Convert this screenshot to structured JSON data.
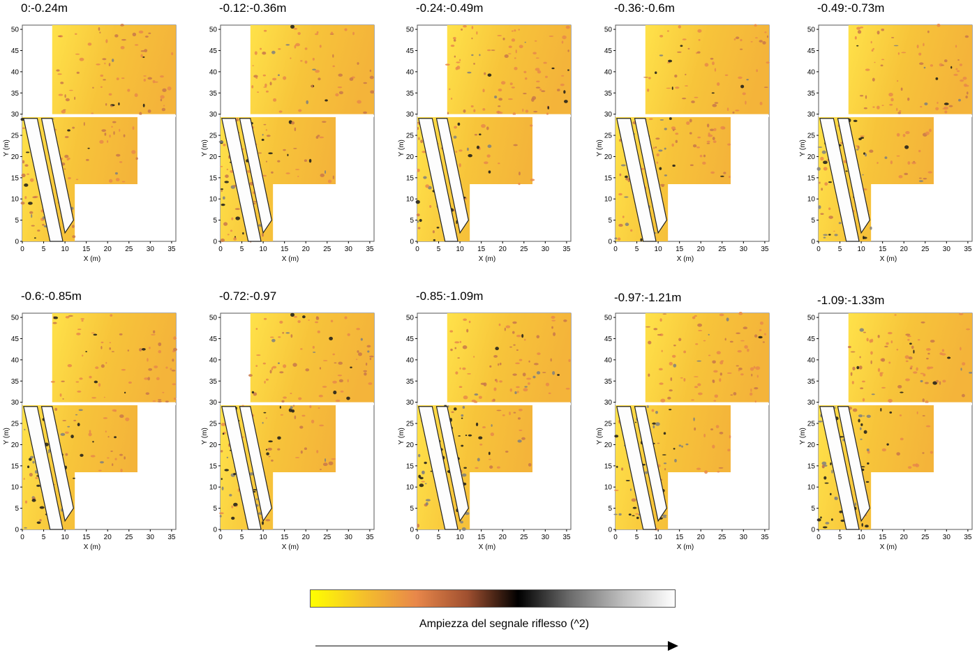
{
  "panels": [
    {
      "title": "0:-0.24m"
    },
    {
      "title": "-0.12:-0.36m"
    },
    {
      "title": "-0.24:-0.49m"
    },
    {
      "title": "-0.36:-0.6m"
    },
    {
      "title": "-0.49:-0.73m"
    },
    {
      "title": "-0.6:-0.85m"
    },
    {
      "title": "-0.72:-0.97"
    },
    {
      "title": "-0.85:-1.09m"
    },
    {
      "title": "-0.97:-1.21m"
    },
    {
      "title": "-1.09:-1.33m"
    }
  ],
  "axes": {
    "xlabel": "X (m)",
    "ylabel": "Y (m)",
    "xticks": [
      "0",
      "5",
      "10",
      "15",
      "20",
      "25",
      "30",
      "35"
    ],
    "yticks": [
      "0",
      "5",
      "10",
      "15",
      "20",
      "25",
      "30",
      "35",
      "40",
      "45",
      "50"
    ],
    "xlim": [
      0,
      36
    ],
    "ylim": [
      0,
      51
    ]
  },
  "legend": {
    "label": "Ampiezza del segnale riflesso (^2)",
    "colors": [
      "#ffff00",
      "#f5c22a",
      "#e8874a",
      "#a05030",
      "#000000",
      "#6a6a6a",
      "#c0c0c0",
      "#ffffff"
    ]
  }
}
